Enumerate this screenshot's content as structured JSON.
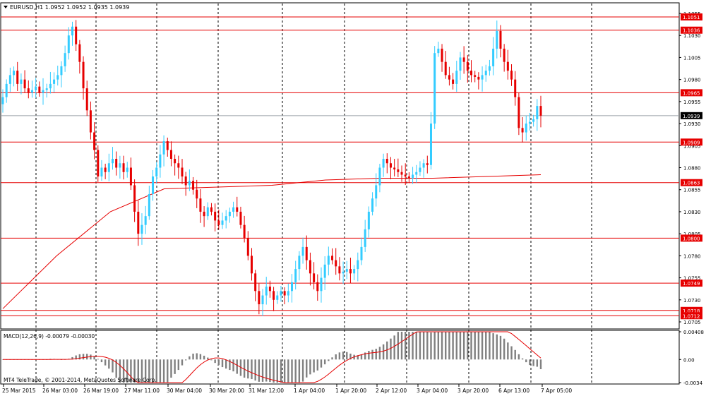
{
  "chart_data": {
    "type": "candlestick",
    "symbol_header": "EURUSD,H1  1.0952 1.0952 1.0935 1.0939",
    "price_axis": {
      "min": 1.0705,
      "max": 1.1055,
      "ticks": [
        "1.1055",
        "1.1030",
        "1.1005",
        "1.0980",
        "1.0955",
        "1.0930",
        "1.0905",
        "1.0880",
        "1.0855",
        "1.0830",
        "1.0805",
        "1.0780",
        "1.0755",
        "1.0730",
        "1.0705"
      ]
    },
    "current_price": "1.0939",
    "levels": [
      {
        "value": 1.1051,
        "label": "1.1051"
      },
      {
        "value": 1.1036,
        "label": "1.1036"
      },
      {
        "value": 1.0965,
        "label": "1.0965"
      },
      {
        "value": 1.0909,
        "label": "1.0909"
      },
      {
        "value": 1.0863,
        "label": "1.0863"
      },
      {
        "value": 1.08,
        "label": "1.0800"
      },
      {
        "value": 1.0749,
        "label": "1.0749"
      },
      {
        "value": 1.0718,
        "label": "1.0718"
      },
      {
        "value": 1.0712,
        "label": "1.0712"
      }
    ],
    "time_labels": [
      "25 Mar 2015",
      "26 Mar 03:00",
      "26 Mar 19:00",
      "27 Mar 11:00",
      "30 Mar 04:00",
      "30 Mar 20:00",
      "31 Mar 12:00",
      "1 Apr 04:00",
      "1 Apr 20:00",
      "2 Apr 12:00",
      "3 Apr 04:00",
      "3 Apr 20:00",
      "6 Apr 13:00",
      "7 Apr 05:00"
    ],
    "closes": [
      1.096,
      1.0975,
      1.0985,
      1.099,
      1.0975,
      1.098,
      1.097,
      1.0965,
      1.0968,
      1.0972,
      1.0965,
      1.0968,
      1.097,
      1.0975,
      1.098,
      1.0985,
      1.0995,
      1.101,
      1.103,
      1.104,
      1.102,
      1.1,
      1.097,
      1.0945,
      1.092,
      1.09,
      1.087,
      1.088,
      1.0875,
      1.0885,
      1.089,
      1.088,
      1.0885,
      1.0875,
      1.088,
      1.086,
      1.083,
      1.0805,
      1.0815,
      1.0825,
      1.085,
      1.087,
      1.088,
      1.0895,
      1.091,
      1.09,
      1.089,
      1.0885,
      1.088,
      1.087,
      1.086,
      1.0865,
      1.0855,
      1.0845,
      1.083,
      1.0825,
      1.0835,
      1.083,
      1.082,
      1.0815,
      1.082,
      1.0825,
      1.083,
      1.0835,
      1.083,
      1.0815,
      1.08,
      1.078,
      1.076,
      1.074,
      1.0725,
      1.0735,
      1.0745,
      1.074,
      1.073,
      1.0735,
      1.074,
      1.0735,
      1.074,
      1.075,
      1.0765,
      1.078,
      1.079,
      1.0775,
      1.076,
      1.075,
      1.074,
      1.0755,
      1.077,
      1.078,
      1.0775,
      1.0768,
      1.076,
      1.0762,
      1.0765,
      1.076,
      1.0765,
      1.0775,
      1.079,
      1.081,
      1.083,
      1.0845,
      1.086,
      1.088,
      1.089,
      1.0885,
      1.088,
      1.0878,
      1.0875,
      1.0872,
      1.087,
      1.0868,
      1.0872,
      1.0875,
      1.088,
      1.0885,
      1.0883,
      1.093,
      1.101,
      1.1015,
      1.1,
      1.0985,
      1.098,
      1.0975,
      1.099,
      1.1005,
      1.1,
      1.099,
      1.0985,
      1.0983,
      1.098,
      1.0985,
      1.099,
      1.0995,
      1.1015,
      1.1035,
      1.1015,
      1.1,
      1.099,
      1.098,
      1.096,
      1.0925,
      1.092,
      1.093,
      1.0932,
      1.0935,
      1.095,
      1.0939
    ],
    "ma_values": [
      1.072,
      1.078,
      1.083,
      1.0856,
      1.0858,
      1.086,
      1.0866,
      1.0868,
      1.0868,
      1.087,
      1.0872
    ],
    "macd": {
      "label": "MACD(12,26,9) -0.00079 -0.00030",
      "ticks": [
        "0.00408",
        "0.00",
        "-0.0034"
      ],
      "max": 0.00408,
      "min": -0.0034
    },
    "copyright": "MT4 TeleTrade, © 2001-2014, MetaQuotes Software Corp."
  }
}
